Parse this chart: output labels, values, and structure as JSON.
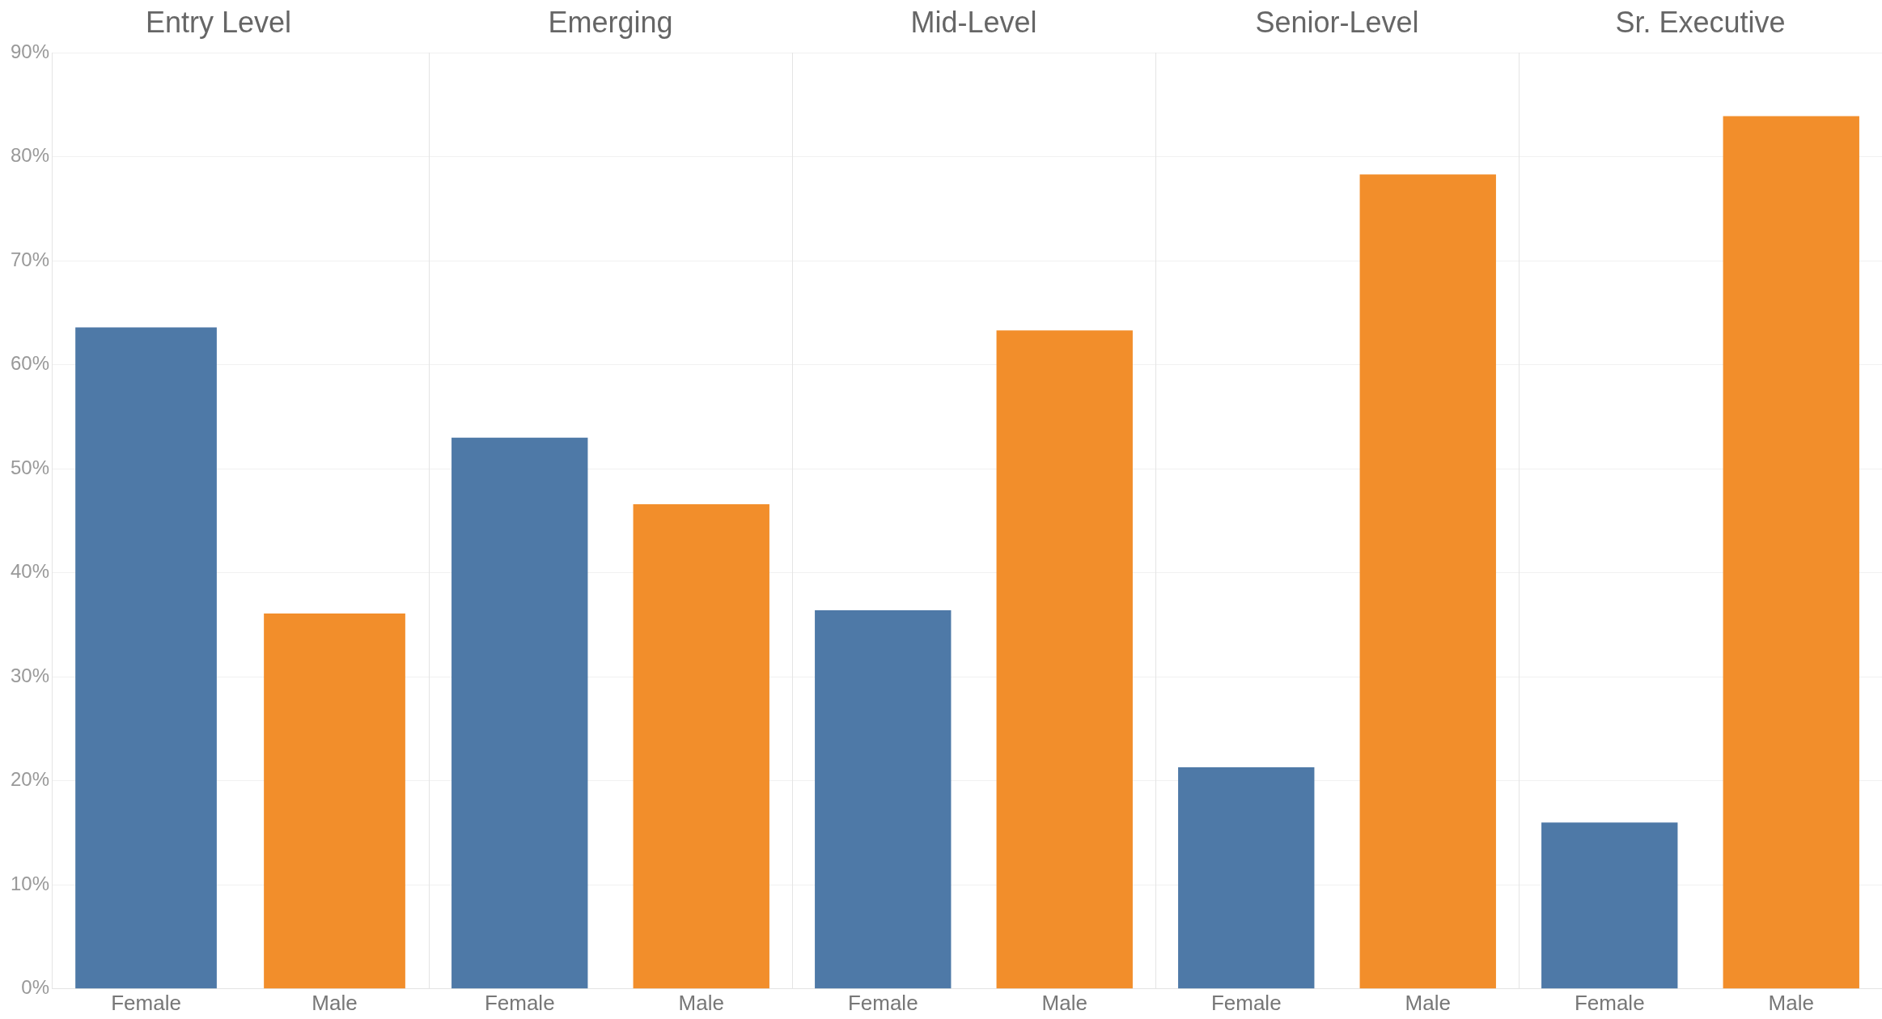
{
  "chart_data": [
    {
      "type": "bar",
      "title": "Entry Level",
      "categories": [
        "Female",
        "Male"
      ],
      "values": [
        63.6,
        36.1
      ],
      "colors": [
        "#4e79a7",
        "#f28e2b"
      ],
      "ylim": [
        0,
        90
      ],
      "yticks": [
        {
          "value": 0,
          "label": "0%"
        },
        {
          "value": 10,
          "label": "10%"
        },
        {
          "value": 20,
          "label": "20%"
        },
        {
          "value": 30,
          "label": "30%"
        },
        {
          "value": 40,
          "label": "40%"
        },
        {
          "value": 50,
          "label": "50%"
        },
        {
          "value": 60,
          "label": "60%"
        },
        {
          "value": 70,
          "label": "70%"
        },
        {
          "value": 80,
          "label": "80%"
        },
        {
          "value": 90,
          "label": "90%"
        }
      ],
      "grid": "y"
    },
    {
      "type": "bar",
      "title": "Emerging",
      "categories": [
        "Female",
        "Male"
      ],
      "values": [
        53.0,
        46.6
      ],
      "colors": [
        "#4e79a7",
        "#f28e2b"
      ],
      "ylim": [
        0,
        90
      ],
      "yticks": [
        0,
        10,
        20,
        30,
        40,
        50,
        60,
        70,
        80,
        90
      ],
      "grid": "y",
      "tick_labels": "x"
    },
    {
      "type": "bar",
      "title": "Mid-Level",
      "categories": [
        "Female",
        "Male"
      ],
      "values": [
        36.4,
        63.3
      ],
      "colors": [
        "#4e79a7",
        "#f28e2b"
      ],
      "ylim": [
        0,
        90
      ],
      "yticks": [
        0,
        10,
        20,
        30,
        40,
        50,
        60,
        70,
        80,
        90
      ],
      "grid": "y",
      "tick_labels": "x"
    },
    {
      "type": "bar",
      "title": "Senior-Level",
      "categories": [
        "Female",
        "Male"
      ],
      "values": [
        21.3,
        78.3
      ],
      "colors": [
        "#4e79a7",
        "#f28e2b"
      ],
      "ylim": [
        0,
        90
      ],
      "yticks": [
        0,
        10,
        20,
        30,
        40,
        50,
        60,
        70,
        80,
        90
      ],
      "grid": "y",
      "tick_labels": "x"
    },
    {
      "type": "bar",
      "title": "Sr. Executive",
      "categories": [
        "Female",
        "Male"
      ],
      "values": [
        16.0,
        83.9
      ],
      "colors": [
        "#4e79a7",
        "#f28e2b"
      ],
      "ylim": [
        0,
        90
      ],
      "yticks": [
        0,
        10,
        20,
        30,
        40,
        50,
        60,
        70,
        80,
        90
      ],
      "grid": "y",
      "tick_labels": "x"
    }
  ]
}
